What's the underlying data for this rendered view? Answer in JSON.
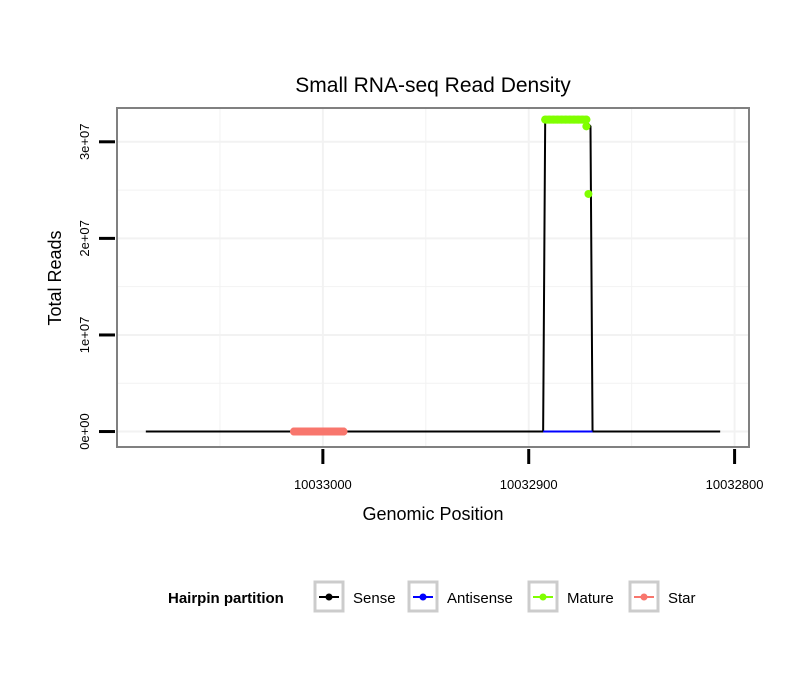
{
  "chart_data": {
    "type": "line",
    "title": "Small RNA-seq Read Density",
    "xlabel": "Genomic Position",
    "ylabel": "Total Reads",
    "xlim": [
      10033100,
      10032793
    ],
    "x_reversed": true,
    "ylim": [
      -1600000,
      33500000
    ],
    "x_ticks": [
      10033000,
      10032900,
      10032800
    ],
    "x_tick_labels": [
      "10033000",
      "10032900",
      "10032800"
    ],
    "y_ticks": [
      0,
      10000000,
      20000000,
      30000000
    ],
    "y_tick_labels": [
      "0e+00",
      "1e+07",
      "2e+07",
      "3e+07"
    ],
    "grid": true,
    "legend": {
      "title": "Hairpin partition",
      "position": "bottom",
      "entries": [
        "Sense",
        "Antisense",
        "Mature",
        "Star"
      ]
    },
    "series": [
      {
        "name": "Sense",
        "color": "#000000",
        "mode": "line",
        "x": [
          10033086,
          10032893,
          10032892,
          10032873,
          10032870,
          10032869,
          10032807
        ],
        "y": [
          0,
          0,
          32300000,
          32300000,
          31600000,
          0,
          0
        ]
      },
      {
        "name": "Antisense",
        "color": "#0000ff",
        "mode": "line",
        "x": [
          10032893,
          10032869
        ],
        "y": [
          0,
          0
        ]
      },
      {
        "name": "Mature",
        "color": "#80ff00",
        "mode": "points",
        "x": [
          10032892,
          10032890,
          10032888,
          10032886,
          10032884,
          10032882,
          10032880,
          10032878,
          10032876,
          10032874,
          10032872,
          10032872,
          10032871
        ],
        "y": [
          32300000,
          32300000,
          32300000,
          32300000,
          32300000,
          32300000,
          32300000,
          32300000,
          32300000,
          32300000,
          32300000,
          31600000,
          24600000
        ]
      },
      {
        "name": "Star",
        "color": "#f8766d",
        "mode": "points",
        "x": [
          10033014,
          10033012,
          10033010,
          10033008,
          10033006,
          10033004,
          10033002,
          10033000,
          10032998,
          10032996,
          10032994,
          10032992,
          10032990
        ],
        "y": [
          0,
          0,
          0,
          0,
          0,
          0,
          0,
          0,
          0,
          0,
          0,
          0,
          0
        ]
      }
    ]
  }
}
